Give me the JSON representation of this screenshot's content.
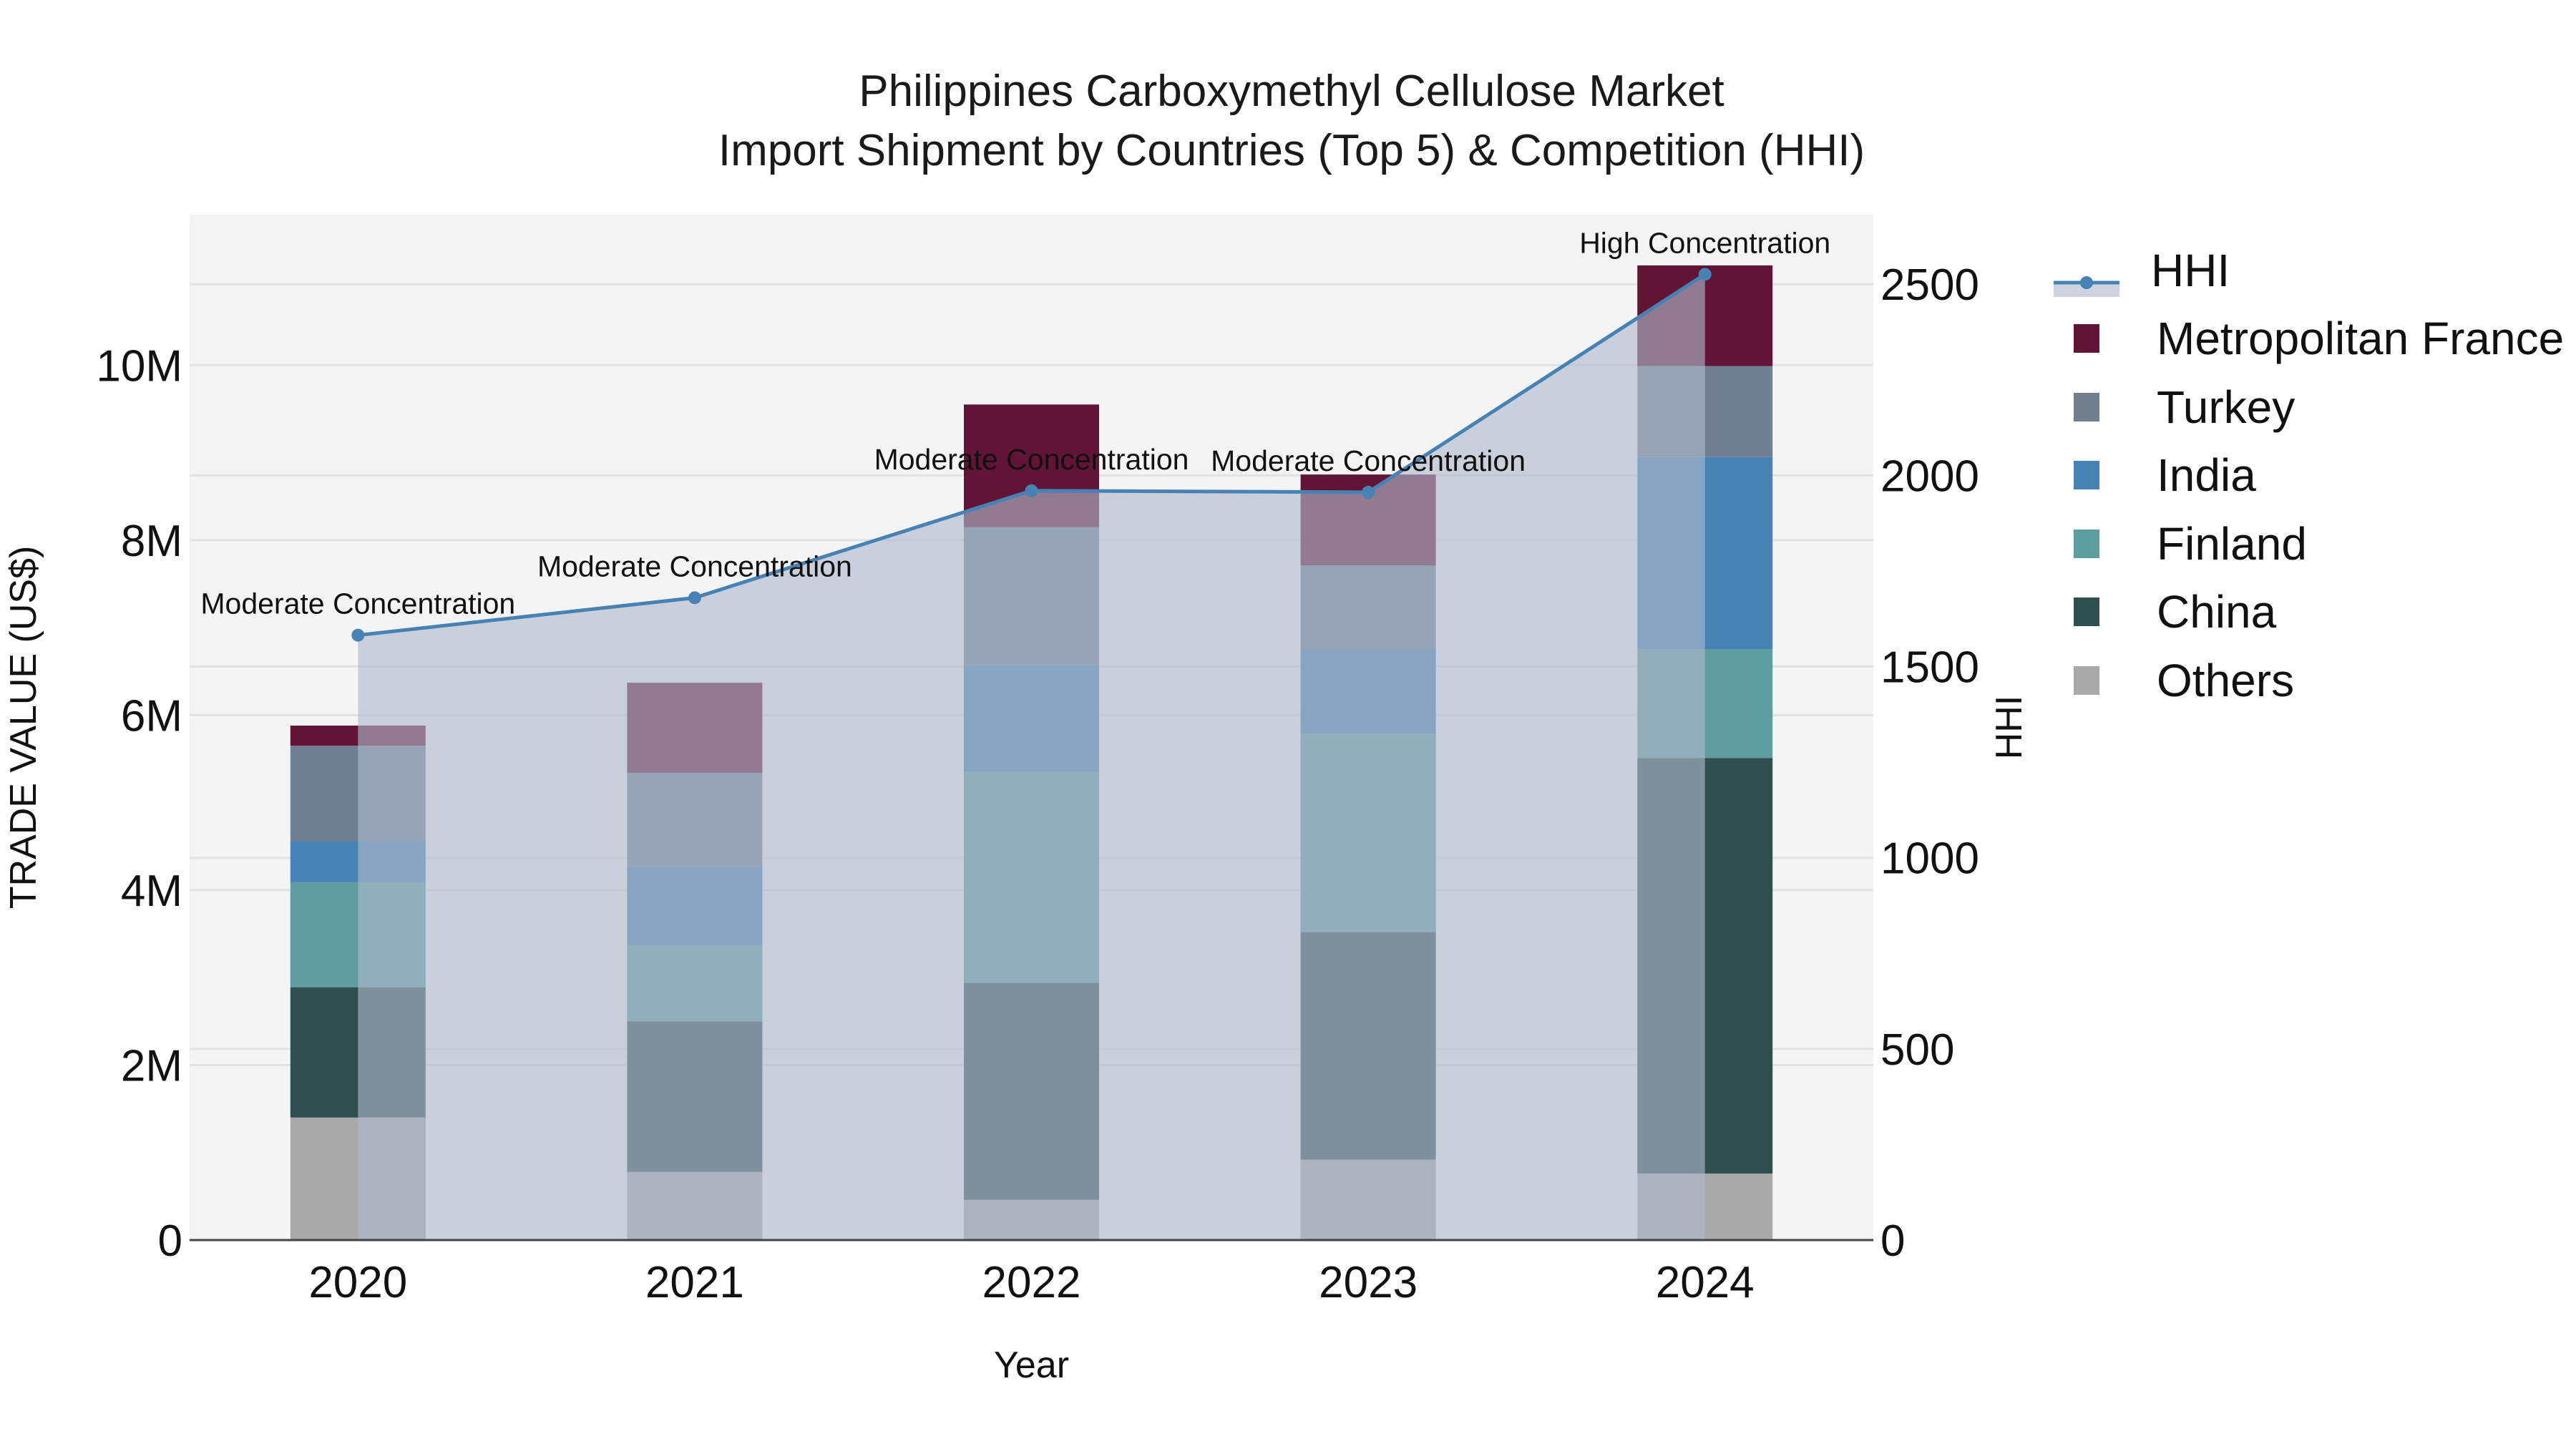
{
  "title": {
    "line1": "Philippines Carboxymethyl Cellulose Market",
    "line2": "Import Shipment by Countries (Top 5) & Competition (HHI)"
  },
  "axes": {
    "x_label": "Year",
    "y_left_label": "TRADE VALUE (US$)",
    "y_right_label": "HHI",
    "y_left_ticks": [
      "0",
      "2M",
      "4M",
      "6M",
      "8M",
      "10M"
    ],
    "y_right_ticks": [
      "0",
      "500",
      "1000",
      "1500",
      "2000",
      "2500"
    ]
  },
  "legend": {
    "items": [
      {
        "label": "HHI",
        "kind": "line"
      },
      {
        "label": "Metropolitan France",
        "kind": "bar"
      },
      {
        "label": "Turkey",
        "kind": "bar"
      },
      {
        "label": "India",
        "kind": "bar"
      },
      {
        "label": "Finland",
        "kind": "bar"
      },
      {
        "label": "China",
        "kind": "bar"
      },
      {
        "label": "Others",
        "kind": "bar"
      }
    ]
  },
  "colors": {
    "Metropolitan France": "#611434",
    "Turkey": "#708090",
    "India": "#4682B4",
    "Finland": "#5F9EA0",
    "China": "#2F4F4F",
    "Others": "#A9A9A9",
    "HHI": "#4682B4",
    "HHI_fill": "rgba(176,186,203,0.62)",
    "plot_bg": "#F4F4F4",
    "grid": "#E2E2E2"
  },
  "chart_data": {
    "type": "bar",
    "title": "Philippines Carboxymethyl Cellulose Market — Import Shipment by Countries (Top 5) & Competition (HHI)",
    "xlabel": "Year",
    "ylabel": "TRADE VALUE (US$)",
    "y2label": "HHI",
    "categories": [
      "2020",
      "2021",
      "2022",
      "2023",
      "2024"
    ],
    "stacked": true,
    "ylim": [
      0,
      11720000
    ],
    "y2lim": [
      0,
      2682
    ],
    "grid": true,
    "legend_position": "right",
    "series": [
      {
        "name": "Others",
        "type": "bar",
        "values": [
          1400000,
          780000,
          460000,
          920000,
          760000
        ]
      },
      {
        "name": "China",
        "type": "bar",
        "values": [
          1490000,
          1720000,
          2480000,
          2600000,
          4750000
        ]
      },
      {
        "name": "Finland",
        "type": "bar",
        "values": [
          1200000,
          870000,
          2410000,
          2270000,
          1240000
        ]
      },
      {
        "name": "India",
        "type": "bar",
        "values": [
          470000,
          900000,
          1220000,
          970000,
          2200000
        ]
      },
      {
        "name": "Turkey",
        "type": "bar",
        "values": [
          1090000,
          1070000,
          1580000,
          950000,
          1040000
        ]
      },
      {
        "name": "Metropolitan France",
        "type": "bar",
        "values": [
          230000,
          1030000,
          1400000,
          1040000,
          1150000
        ]
      },
      {
        "name": "HHI",
        "type": "area-line",
        "axis": "y2",
        "values": [
          1582,
          1680,
          1960,
          1956,
          2526
        ]
      }
    ],
    "annotations": [
      {
        "x": "2020",
        "text": "Moderate Concentration"
      },
      {
        "x": "2021",
        "text": "Moderate Concentration"
      },
      {
        "x": "2022",
        "text": "Moderate Concentration"
      },
      {
        "x": "2023",
        "text": "Moderate Concentration"
      },
      {
        "x": "2024",
        "text": "High Concentration"
      }
    ]
  }
}
